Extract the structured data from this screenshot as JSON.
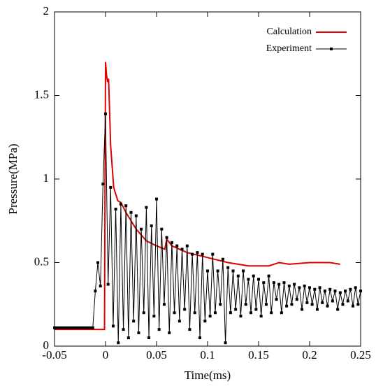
{
  "chart_data": {
    "type": "line",
    "xlabel": "Time(ms)",
    "ylabel": "Pressure(MPa)",
    "xlim": [
      -0.05,
      0.25
    ],
    "xticks": [
      -0.05,
      0,
      0.05,
      0.1,
      0.15,
      0.2,
      0.25
    ],
    "ylim": [
      0,
      2
    ],
    "yticks": [
      0,
      0.5,
      1,
      1.5,
      2
    ],
    "legend": "top-right",
    "series": [
      {
        "name": "Calculation",
        "color": "#e00000",
        "markers": false,
        "x": [
          -0.05,
          -0.001,
          -0.0005,
          0,
          0.001,
          0.002,
          0.003,
          0.005,
          0.008,
          0.012,
          0.015,
          0.02,
          0.03,
          0.04,
          0.05,
          0.058,
          0.06,
          0.065,
          0.08,
          0.1,
          0.12,
          0.14,
          0.15,
          0.16,
          0.17,
          0.18,
          0.2,
          0.22,
          0.23
        ],
        "values": [
          0.1,
          0.1,
          1.0,
          1.7,
          1.62,
          1.58,
          1.6,
          1.2,
          0.95,
          0.87,
          0.86,
          0.8,
          0.7,
          0.63,
          0.6,
          0.58,
          0.64,
          0.6,
          0.56,
          0.53,
          0.5,
          0.48,
          0.48,
          0.48,
          0.5,
          0.49,
          0.5,
          0.5,
          0.49
        ]
      },
      {
        "name": "Experiment",
        "color": "#000000",
        "markers": true,
        "x": [
          -0.05,
          -0.0475,
          -0.045,
          -0.0425,
          -0.04,
          -0.0375,
          -0.035,
          -0.0325,
          -0.03,
          -0.0275,
          -0.025,
          -0.0225,
          -0.02,
          -0.0175,
          -0.015,
          -0.0125,
          -0.01,
          -0.0075,
          -0.005,
          -0.0025,
          0,
          0.0025,
          0.005,
          0.0075,
          0.01,
          0.0125,
          0.015,
          0.0175,
          0.02,
          0.0225,
          0.025,
          0.0275,
          0.03,
          0.0325,
          0.035,
          0.0375,
          0.04,
          0.0425,
          0.045,
          0.0475,
          0.05,
          0.0525,
          0.055,
          0.0575,
          0.06,
          0.0625,
          0.065,
          0.0675,
          0.07,
          0.0725,
          0.075,
          0.0775,
          0.08,
          0.0825,
          0.085,
          0.0875,
          0.09,
          0.0925,
          0.095,
          0.0975,
          0.1,
          0.1025,
          0.105,
          0.1075,
          0.11,
          0.1125,
          0.115,
          0.1175,
          0.12,
          0.1225,
          0.125,
          0.1275,
          0.13,
          0.1325,
          0.135,
          0.1375,
          0.14,
          0.1425,
          0.145,
          0.1475,
          0.15,
          0.1525,
          0.155,
          0.1575,
          0.16,
          0.1625,
          0.165,
          0.1675,
          0.17,
          0.1725,
          0.175,
          0.1775,
          0.18,
          0.1825,
          0.185,
          0.1875,
          0.19,
          0.1925,
          0.195,
          0.1975,
          0.2,
          0.2025,
          0.205,
          0.2075,
          0.21,
          0.2125,
          0.215,
          0.2175,
          0.22,
          0.2225,
          0.225,
          0.2275,
          0.23,
          0.2325,
          0.235,
          0.2375,
          0.24,
          0.2425,
          0.245,
          0.2475,
          0.25
        ],
        "values": [
          0.11,
          0.11,
          0.11,
          0.11,
          0.11,
          0.11,
          0.11,
          0.11,
          0.11,
          0.11,
          0.11,
          0.11,
          0.11,
          0.11,
          0.11,
          0.11,
          0.33,
          0.5,
          0.36,
          0.97,
          1.39,
          0.37,
          0.95,
          0.12,
          0.82,
          0.02,
          0.85,
          0.1,
          0.84,
          0.05,
          0.8,
          0.15,
          0.78,
          0.08,
          0.7,
          0.2,
          0.83,
          0.05,
          0.72,
          0.18,
          0.88,
          0.1,
          0.7,
          0.25,
          0.65,
          0.08,
          0.62,
          0.2,
          0.6,
          0.15,
          0.58,
          0.22,
          0.6,
          0.1,
          0.55,
          0.2,
          0.56,
          0.05,
          0.55,
          0.15,
          0.45,
          0.18,
          0.55,
          0.2,
          0.45,
          0.25,
          0.52,
          0.02,
          0.47,
          0.2,
          0.45,
          0.22,
          0.42,
          0.18,
          0.45,
          0.25,
          0.4,
          0.2,
          0.42,
          0.22,
          0.4,
          0.18,
          0.38,
          0.25,
          0.42,
          0.2,
          0.38,
          0.28,
          0.37,
          0.2,
          0.38,
          0.24,
          0.36,
          0.25,
          0.37,
          0.28,
          0.35,
          0.22,
          0.36,
          0.26,
          0.35,
          0.25,
          0.34,
          0.22,
          0.35,
          0.26,
          0.33,
          0.24,
          0.34,
          0.27,
          0.33,
          0.22,
          0.32,
          0.25,
          0.33,
          0.27,
          0.34,
          0.24,
          0.35,
          0.25,
          0.33
        ]
      }
    ]
  }
}
